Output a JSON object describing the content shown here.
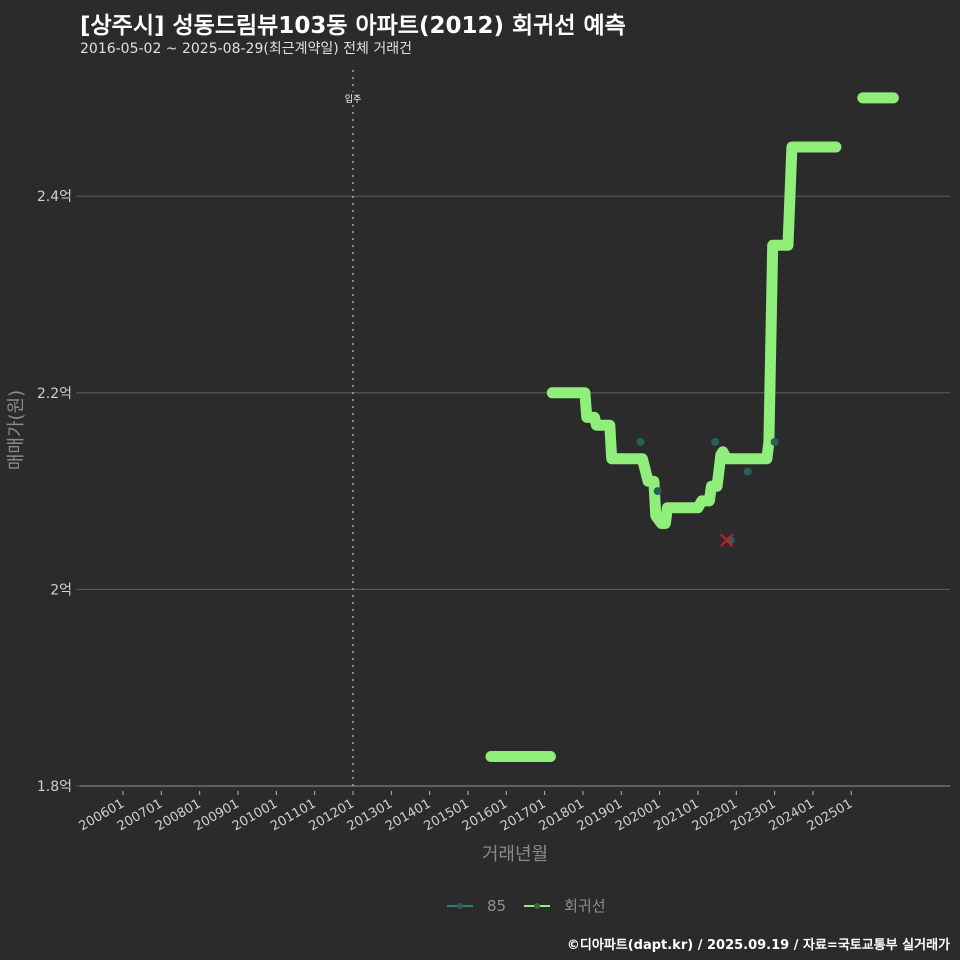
{
  "header": {
    "title": "[상주시] 성동드림뷰103동 아파트(2012) 회귀선 예측",
    "subtitle": "2016-05-02 ~ 2025-08-29(최근계약일) 전체 거래건"
  },
  "legend": {
    "items": [
      {
        "label": "85",
        "color": "#2a7f7a"
      },
      {
        "label": "회귀선",
        "color": "#90ee7a"
      }
    ]
  },
  "footer": {
    "credit": "©디아파트(dapt.kr) / 2025.09.19 / 자료=국토교통부 실거래가"
  },
  "annotation": {
    "label": "입주",
    "x": "201201"
  },
  "colors": {
    "background": "#2b2b2b",
    "grid": "#5e5e5e",
    "regression": "#90ee7a",
    "points": "#2a5e58",
    "marker_x": "#c0202a"
  },
  "chart_data": {
    "type": "line",
    "title": "[상주시] 성동드림뷰103동 아파트(2012) 회귀선 예측",
    "subtitle": "2016-05-02 ~ 2025-08-29(최근계약일) 전체 거래건",
    "xlabel": "거래년월",
    "ylabel": "매매가(원)",
    "x_ticks": [
      "200601",
      "200701",
      "200801",
      "200901",
      "201001",
      "201101",
      "201201",
      "201301",
      "201401",
      "201501",
      "201601",
      "201701",
      "201801",
      "201901",
      "202001",
      "202101",
      "202201",
      "202301",
      "202401",
      "202501"
    ],
    "y_ticks": [
      "1.8억",
      "2억",
      "2.2억",
      "2.4억"
    ],
    "y_tick_values": [
      1.8,
      2.0,
      2.2,
      2.4
    ],
    "ylim": [
      1.8,
      2.52
    ],
    "xlim": [
      2005.0,
      2027.2
    ],
    "grid": "horizontal",
    "legend_position": "bottom",
    "series": [
      {
        "name": "회귀선",
        "type": "step-line",
        "segments": [
          [
            [
              2015.6,
              1.83
            ],
            [
              2017.15,
              1.83
            ]
          ],
          [
            [
              2017.2,
              2.2
            ],
            [
              2018.05,
              2.2
            ],
            [
              2018.1,
              2.175
            ],
            [
              2018.3,
              2.175
            ],
            [
              2018.35,
              2.167
            ],
            [
              2018.7,
              2.167
            ],
            [
              2018.75,
              2.133
            ],
            [
              2019.55,
              2.133
            ],
            [
              2019.7,
              2.11
            ],
            [
              2019.85,
              2.11
            ],
            [
              2019.9,
              2.075
            ],
            [
              2020.05,
              2.067
            ],
            [
              2020.15,
              2.067
            ],
            [
              2020.2,
              2.083
            ],
            [
              2021.0,
              2.083
            ],
            [
              2021.1,
              2.09
            ],
            [
              2021.3,
              2.09
            ],
            [
              2021.35,
              2.105
            ],
            [
              2021.5,
              2.105
            ],
            [
              2021.6,
              2.137
            ],
            [
              2021.65,
              2.14
            ],
            [
              2021.75,
              2.133
            ],
            [
              2022.8,
              2.133
            ],
            [
              2022.85,
              2.15
            ],
            [
              2022.95,
              2.35
            ],
            [
              2023.35,
              2.35
            ],
            [
              2023.45,
              2.45
            ],
            [
              2024.6,
              2.45
            ]
          ],
          [
            [
              2025.3,
              2.5
            ],
            [
              2026.1,
              2.5
            ]
          ]
        ]
      },
      {
        "name": "85",
        "type": "scatter",
        "points": [
          {
            "x": 2019.5,
            "y": 2.15
          },
          {
            "x": 2019.95,
            "y": 2.1
          },
          {
            "x": 2021.45,
            "y": 2.15
          },
          {
            "x": 2021.85,
            "y": 2.05
          },
          {
            "x": 2022.3,
            "y": 2.12
          },
          {
            "x": 2023.0,
            "y": 2.15
          }
        ]
      }
    ],
    "annotations": [
      {
        "type": "vline",
        "x": 2012.0,
        "style": "dotted",
        "label": "입주"
      },
      {
        "type": "marker-x",
        "x": 2021.75,
        "y": 2.05,
        "color": "#c0202a"
      }
    ]
  }
}
